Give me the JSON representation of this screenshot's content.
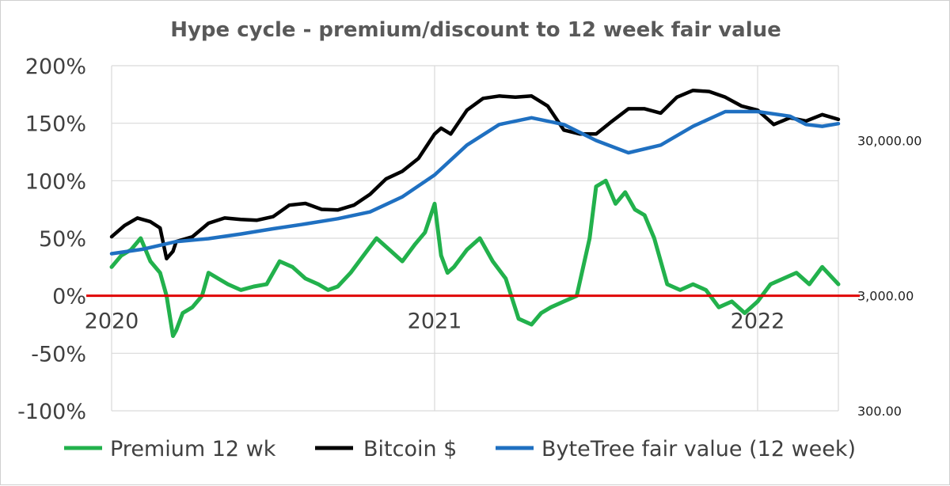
{
  "chart_data": {
    "type": "line",
    "title": "Hype cycle - premium/discount to 12 week fair value",
    "y_axis_left": {
      "ticks": [
        "200%",
        "150%",
        "100%",
        "50%",
        "0%",
        "-50%",
        "-100%"
      ],
      "tick_values": [
        200,
        150,
        100,
        50,
        0,
        -50,
        -100
      ],
      "range": [
        -100,
        200
      ]
    },
    "y_axis_right": {
      "scale": "log",
      "ticks": [
        "30,000.00",
        "3,000.00",
        "300.00"
      ],
      "tick_values": [
        30000,
        3000,
        300
      ]
    },
    "x_axis": {
      "ticks": [
        "2020",
        "2021",
        "2022"
      ],
      "tick_values": [
        2020,
        2021,
        2022
      ],
      "range": [
        2020,
        2022.25
      ]
    },
    "grid": true,
    "zero_line_color": "#e00000",
    "legend": {
      "position": "bottom"
    },
    "series": [
      {
        "name": "Premium 12 wk",
        "axis": "left",
        "color": "#22b14c",
        "x": [
          2020.0,
          2020.03,
          2020.06,
          2020.09,
          2020.12,
          2020.15,
          2020.17,
          2020.19,
          2020.2,
          2020.22,
          2020.25,
          2020.28,
          2020.3,
          2020.33,
          2020.36,
          2020.4,
          2020.44,
          2020.48,
          2020.52,
          2020.56,
          2020.6,
          2020.64,
          2020.67,
          2020.7,
          2020.74,
          2020.78,
          2020.82,
          2020.86,
          2020.9,
          2020.94,
          2020.97,
          2021.0,
          2021.02,
          2021.04,
          2021.06,
          2021.1,
          2021.14,
          2021.18,
          2021.22,
          2021.26,
          2021.3,
          2021.33,
          2021.36,
          2021.4,
          2021.44,
          2021.48,
          2021.5,
          2021.53,
          2021.56,
          2021.59,
          2021.62,
          2021.65,
          2021.68,
          2021.72,
          2021.76,
          2021.8,
          2021.84,
          2021.88,
          2021.92,
          2021.96,
          2022.0,
          2022.04,
          2022.08,
          2022.12,
          2022.16,
          2022.2,
          2022.25
        ],
        "values": [
          25,
          35,
          40,
          50,
          30,
          20,
          0,
          -35,
          -30,
          -15,
          -10,
          0,
          20,
          15,
          10,
          5,
          8,
          10,
          30,
          25,
          15,
          10,
          5,
          8,
          20,
          35,
          50,
          40,
          30,
          45,
          55,
          80,
          35,
          20,
          25,
          40,
          50,
          30,
          15,
          -20,
          -25,
          -15,
          -10,
          -5,
          0,
          50,
          95,
          100,
          80,
          90,
          75,
          70,
          50,
          10,
          5,
          10,
          5,
          -10,
          -5,
          -15,
          -5,
          10,
          15,
          20,
          10,
          25,
          10
        ]
      },
      {
        "name": "Bitcoin $",
        "axis": "right",
        "color": "#000000",
        "x": [
          2020.0,
          2020.04,
          2020.08,
          2020.12,
          2020.15,
          2020.17,
          2020.19,
          2020.2,
          2020.25,
          2020.3,
          2020.35,
          2020.4,
          2020.45,
          2020.5,
          2020.55,
          2020.6,
          2020.65,
          2020.7,
          2020.75,
          2020.8,
          2020.85,
          2020.9,
          2020.95,
          2021.0,
          2021.02,
          2021.05,
          2021.1,
          2021.15,
          2021.2,
          2021.25,
          2021.3,
          2021.35,
          2021.4,
          2021.45,
          2021.5,
          2021.55,
          2021.6,
          2021.65,
          2021.7,
          2021.75,
          2021.8,
          2021.85,
          2021.9,
          2021.95,
          2022.0,
          2022.05,
          2022.1,
          2022.15,
          2022.2,
          2022.25
        ],
        "values": [
          7200,
          8500,
          9500,
          9000,
          8200,
          5200,
          5800,
          6700,
          7200,
          8800,
          9500,
          9300,
          9200,
          9700,
          11500,
          11800,
          10800,
          10700,
          11500,
          13500,
          17000,
          19000,
          23000,
          33000,
          36000,
          33000,
          47000,
          56000,
          58000,
          57000,
          58000,
          50000,
          35000,
          33000,
          33000,
          40000,
          48000,
          48000,
          45000,
          57000,
          63000,
          62000,
          57000,
          50000,
          47000,
          38000,
          42000,
          40000,
          44000,
          41000
        ]
      },
      {
        "name": "ByteTree fair value (12 week)",
        "axis": "right",
        "color": "#1f70c1",
        "x": [
          2020.0,
          2020.1,
          2020.2,
          2020.3,
          2020.4,
          2020.5,
          2020.6,
          2020.7,
          2020.8,
          2020.9,
          2021.0,
          2021.1,
          2021.2,
          2021.3,
          2021.4,
          2021.5,
          2021.6,
          2021.7,
          2021.8,
          2021.9,
          2022.0,
          2022.1,
          2022.15,
          2022.2,
          2022.25
        ],
        "values": [
          5600,
          6000,
          6700,
          7000,
          7500,
          8100,
          8700,
          9400,
          10400,
          13000,
          18000,
          28000,
          38000,
          42000,
          38000,
          30000,
          25000,
          28000,
          37000,
          46000,
          46000,
          43000,
          38000,
          37000,
          38500
        ]
      }
    ]
  }
}
